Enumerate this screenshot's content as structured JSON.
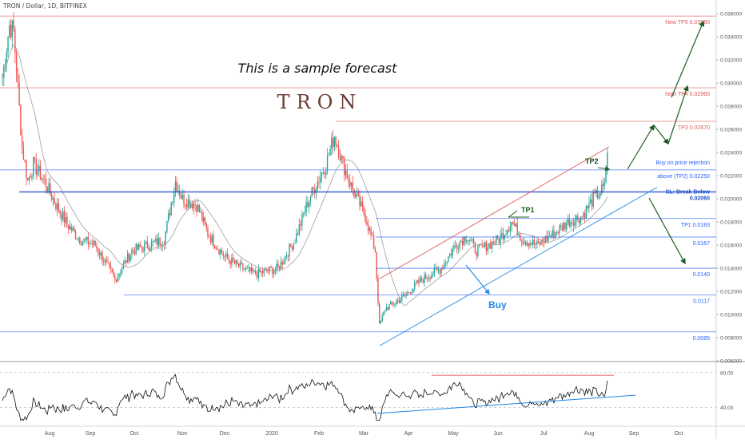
{
  "header": {
    "symbol": "TRON / Dollar, 1D, BITFINEX"
  },
  "chart_data": {
    "type": "candlestick",
    "title": "TRON",
    "annotation_title": "This is a sample forecast",
    "price_axis": {
      "ylim": [
        0.006,
        0.0365
      ],
      "ticks": [
        "0.036000",
        "0.034000",
        "0.032000",
        "0.030000",
        "0.028000",
        "0.026000",
        "0.024000",
        "0.022000",
        "0.020000",
        "0.018000",
        "0.016000",
        "0.014000",
        "0.012000",
        "0.010000",
        "0.008000",
        "0.006000"
      ]
    },
    "time_axis": {
      "labels": [
        "Aug",
        "Sep",
        "Oct",
        "Nov",
        "Dec",
        "2020",
        "Feb",
        "Mar",
        "Apr",
        "May",
        "Jun",
        "Jul",
        "Aug",
        "Sep",
        "Oct"
      ]
    },
    "levels": [
      {
        "value": 0.0358,
        "label": "New TP5 0.03580",
        "color": "#e05a5a"
      },
      {
        "value": 0.0296,
        "label": "New TP4 0.02960",
        "color": "#e05a5a"
      },
      {
        "value": 0.0267,
        "label": "TP3 0.02670",
        "color": "#e05a5a"
      },
      {
        "value": 0.0225,
        "label": "above (TP2) 0.02250",
        "color": "#2962ff"
      },
      {
        "value": 0.0206,
        "label": "0.02060",
        "color": "#1e50c8"
      },
      {
        "value": 0.0183,
        "label": "TP1 0.0183",
        "color": "#2962ff"
      },
      {
        "value": 0.0167,
        "label": "0.0167",
        "color": "#2962ff"
      },
      {
        "value": 0.014,
        "label": "0.0140",
        "color": "#2962ff"
      },
      {
        "value": 0.0117,
        "label": "0.0117",
        "color": "#2962ff"
      },
      {
        "value": 0.0085,
        "label": "0.0085",
        "color": "#2962ff"
      }
    ],
    "labels": {
      "buy_on_rejection": "Buy on price rejection",
      "sl_break_below": "SL: Break  Below",
      "tp1": "TP1",
      "tp2": "TP2",
      "buy": "Buy"
    },
    "rsi": {
      "ylim": [
        20,
        90
      ],
      "ticks": [
        "80.00",
        "40.00"
      ]
    },
    "colors": {
      "up": "#26a69a",
      "down": "#ef5350",
      "price_line": "#000000",
      "ma": "#9e9e9e",
      "target_red": "#e05a5a",
      "level_blue": "#2962ff",
      "forecast_green": "#1b5e20",
      "buy_blue": "#1e88e5"
    }
  }
}
